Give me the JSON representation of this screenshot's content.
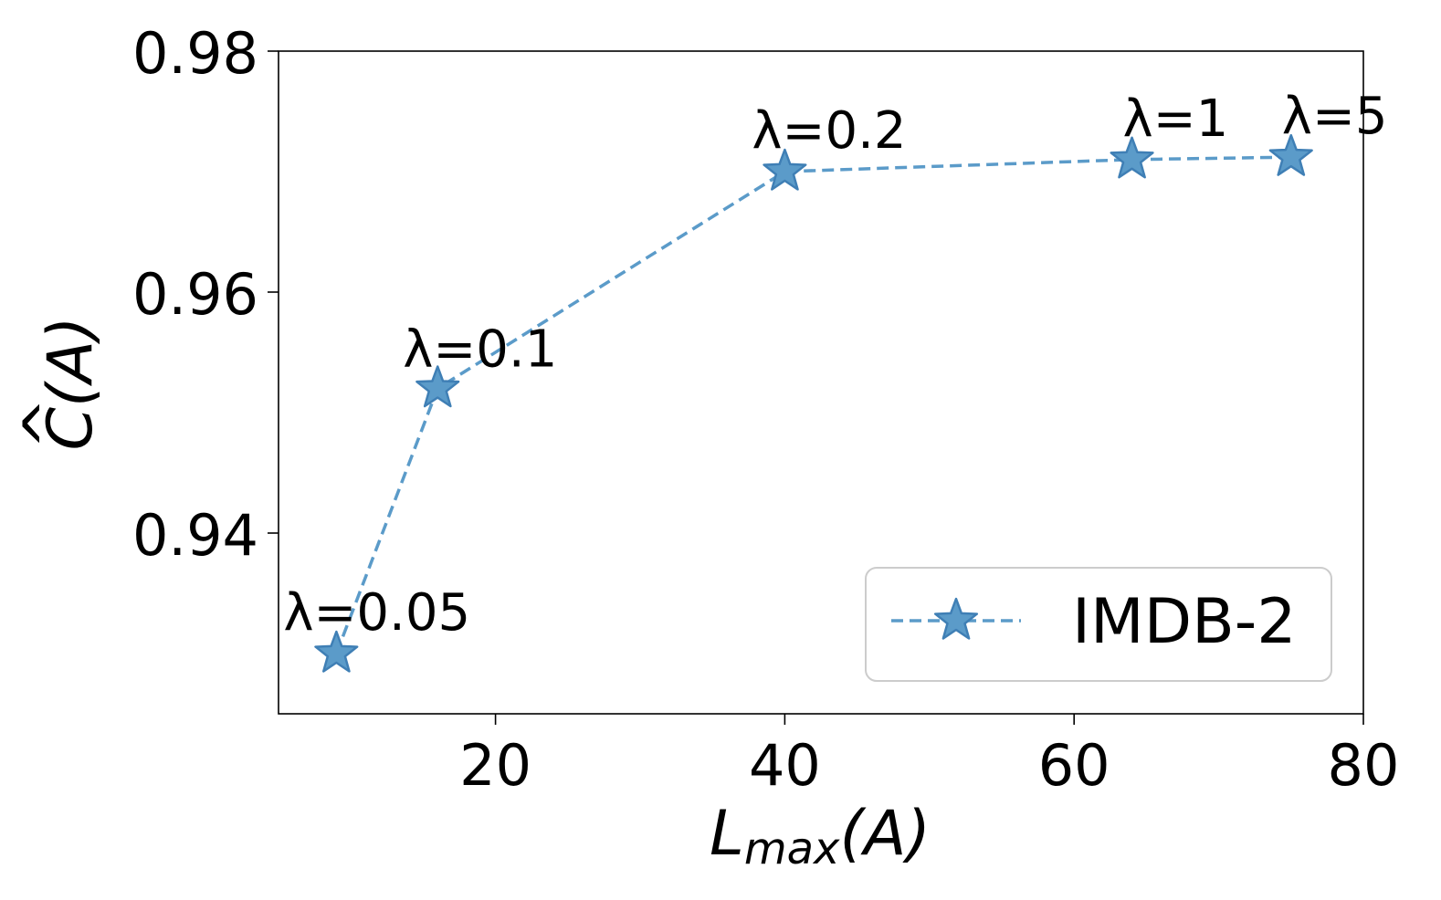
{
  "chart_data": {
    "type": "line",
    "xlabel_main": "L",
    "xlabel_sub": "max",
    "xlabel_tail": "(A)",
    "ylabel": "C(A)",
    "ylabel_hat": "^",
    "xlim": [
      5,
      80
    ],
    "ylim": [
      0.925,
      0.98
    ],
    "xticks": [
      20,
      40,
      60,
      80
    ],
    "xtick_labels": [
      "20",
      "40",
      "60",
      "80"
    ],
    "yticks": [
      0.94,
      0.96,
      0.98
    ],
    "ytick_labels": [
      "0.94",
      "0.96",
      "0.98"
    ],
    "grid": false,
    "legend_position": "lower-right",
    "series": [
      {
        "name": "IMDB-2",
        "color": "#5b9bc9",
        "edge_color": "#3f7fb5",
        "line_style": "dashed",
        "marker": "star",
        "x": [
          9,
          16,
          40,
          64,
          75
        ],
        "y": [
          0.93,
          0.952,
          0.97,
          0.971,
          0.9712
        ],
        "point_labels": [
          "λ=0.05",
          "λ=0.1",
          "λ=0.2",
          "λ=1",
          "λ=5"
        ]
      }
    ]
  }
}
